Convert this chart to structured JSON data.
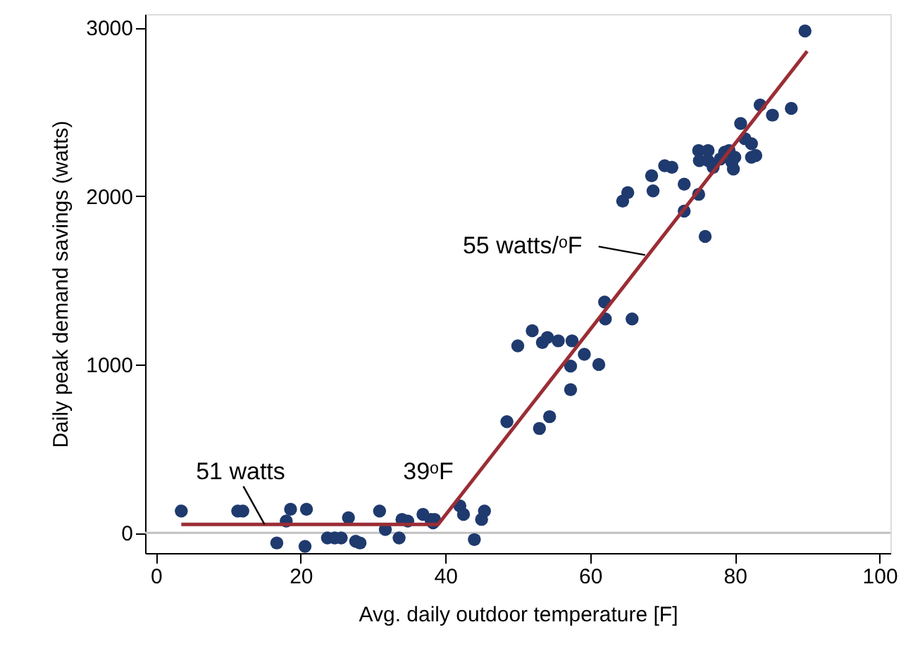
{
  "chart_data": {
    "type": "scatter",
    "xlabel": "Avg. daily outdoor temperature [F]",
    "ylabel": "Daily peak demand savings (watts)",
    "xlim": [
      -1.5,
      101.5
    ],
    "ylim": [
      -120,
      3080
    ],
    "xticks": [
      0,
      20,
      40,
      60,
      80,
      100
    ],
    "yticks": [
      0,
      1000,
      2000,
      3000
    ],
    "grid": false,
    "marker": "circle",
    "series": [
      {
        "color": "#1f3a6e",
        "x": [
          3.5,
          11.3,
          12,
          16.7,
          18,
          18.6,
          20.8,
          20.6,
          23.7,
          24.7,
          25.6,
          26.6,
          27.6,
          28.2,
          30.9,
          31.7,
          33.6,
          34,
          34.8,
          36.9,
          38,
          38.5,
          38.3,
          42,
          42.5,
          44,
          45,
          45.4,
          48.5,
          50,
          52,
          53.4,
          54.1,
          53,
          54.4,
          55.6,
          57.5,
          57.3,
          57.3,
          59.2,
          61.2,
          62.1,
          62,
          65.8,
          65.2,
          64.5,
          68.5,
          68.7,
          70.3,
          71.3,
          73,
          75,
          73,
          75.9,
          75,
          76.3,
          75.1,
          76.3,
          77,
          78,
          78.6,
          79.2,
          80,
          79.6,
          79.8,
          80.8,
          81.4,
          82.3,
          82.3,
          82.9,
          83.5,
          85.2,
          87.8,
          89.7
        ],
        "values": [
          130,
          130,
          130,
          -60,
          70,
          140,
          140,
          -80,
          -30,
          -30,
          -30,
          90,
          -50,
          -60,
          130,
          20,
          -30,
          80,
          70,
          110,
          80,
          80,
          60,
          160,
          110,
          -40,
          80,
          130,
          660,
          1110,
          1200,
          1130,
          1160,
          620,
          690,
          1140,
          1140,
          990,
          850,
          1060,
          1000,
          1270,
          1370,
          1270,
          2020,
          1970,
          2120,
          2030,
          2180,
          2170,
          2070,
          2010,
          1910,
          1760,
          2270,
          2270,
          2210,
          2210,
          2170,
          2220,
          2260,
          2270,
          2230,
          2200,
          2160,
          2430,
          2340,
          2310,
          2230,
          2240,
          2540,
          2480,
          2520,
          2980
        ]
      },
      {
        "type": "line",
        "color": "#9b2d35",
        "marker": "none",
        "line_style": "solid",
        "x": [
          3.5,
          39,
          90
        ],
        "values": [
          50,
          50,
          2860
        ]
      }
    ],
    "ref_lines": [
      {
        "axis": "y",
        "value": 0,
        "color": "#c0c0c0"
      }
    ],
    "annotations": [
      {
        "text": "51 watts",
        "x": 15,
        "y": 51
      },
      {
        "text": "39ᵒF",
        "x": 39,
        "y": 51
      },
      {
        "text": "55 watts/ᵒF",
        "x": 67.6,
        "y": 1650
      }
    ]
  }
}
